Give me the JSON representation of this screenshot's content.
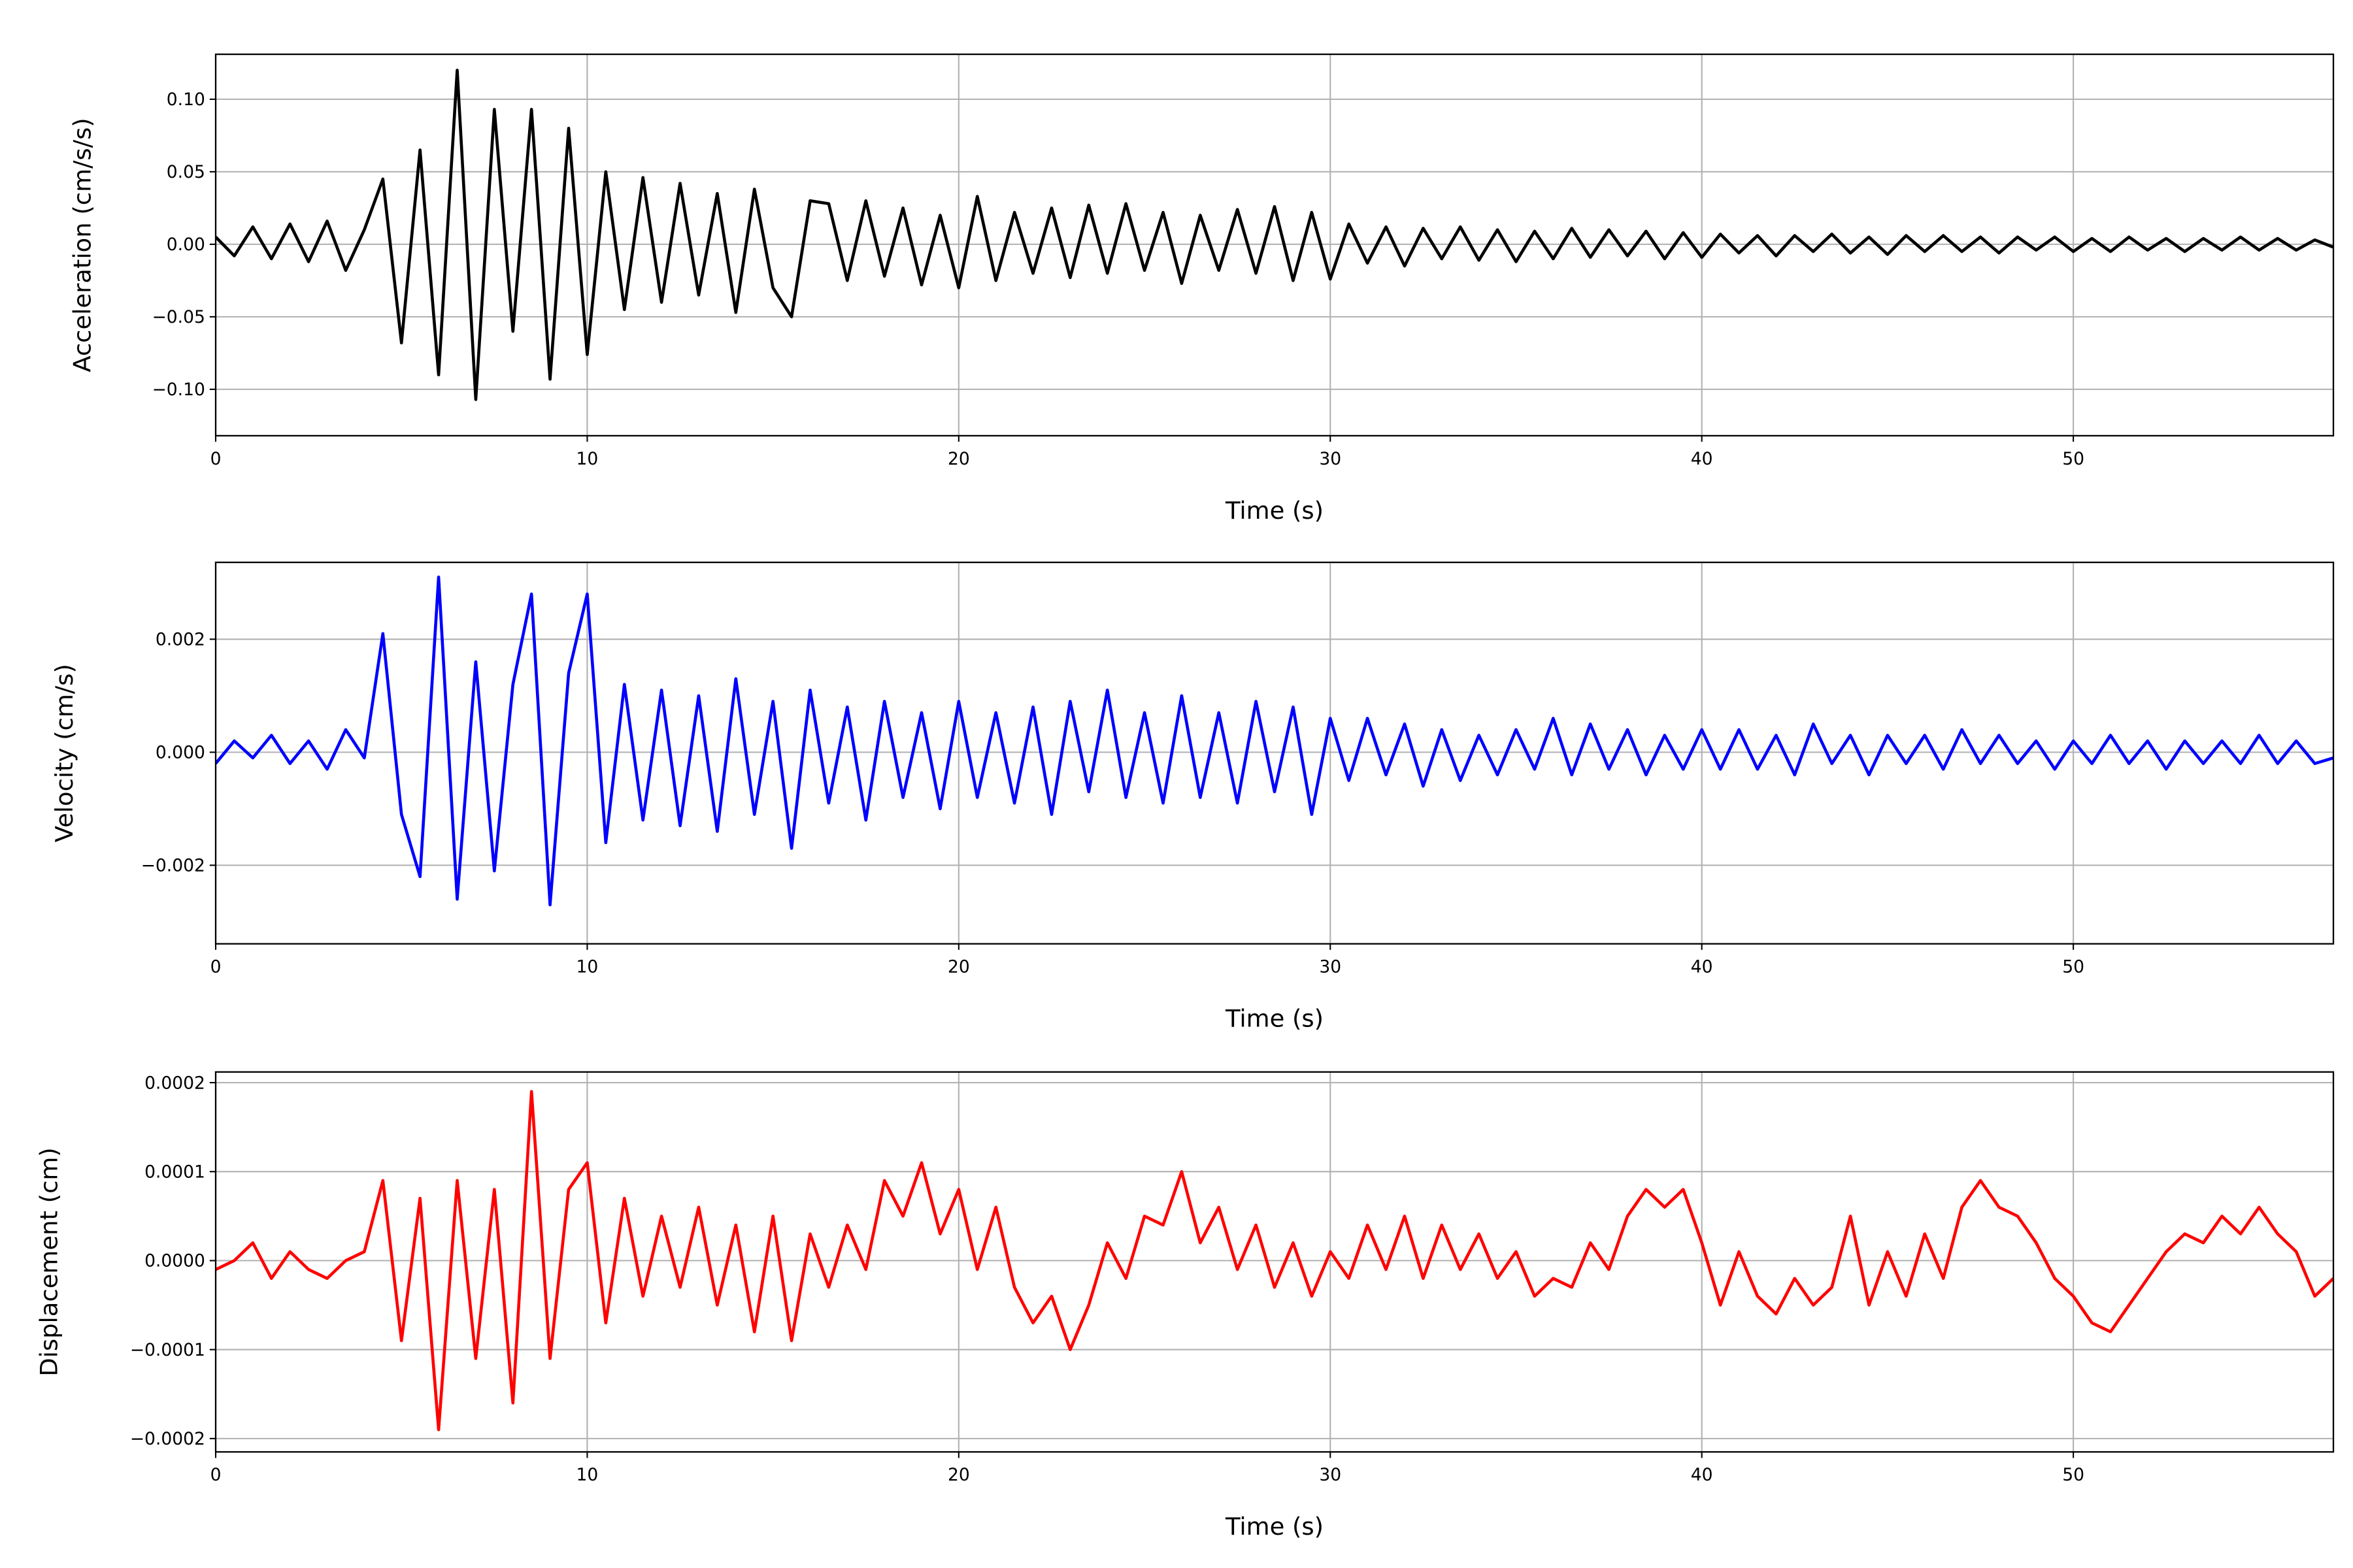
{
  "chart_data": [
    {
      "type": "line",
      "title": "",
      "xlabel": "Time (s)",
      "ylabel": "Acceleration (cm/s/s)",
      "xlim": [
        0,
        57
      ],
      "ylim": [
        -0.132,
        0.131
      ],
      "grid": true,
      "color": "#000000",
      "xticks": [
        0,
        10,
        20,
        30,
        40,
        50
      ],
      "xtick_labels": [
        "0",
        "10",
        "20",
        "30",
        "40",
        "50"
      ],
      "yticks": [
        0.1,
        0.05,
        0.0,
        -0.05,
        -0.1
      ],
      "ytick_labels": [
        "0.10",
        "0.05",
        "0.00",
        "−0.05",
        "−0.10"
      ],
      "x_start": 0,
      "x_step": 0.5,
      "values": [
        0.005,
        -0.008,
        0.012,
        -0.01,
        0.014,
        -0.012,
        0.016,
        -0.018,
        0.01,
        0.045,
        -0.068,
        0.065,
        -0.09,
        0.12,
        -0.107,
        0.093,
        -0.06,
        0.093,
        -0.093,
        0.08,
        -0.076,
        0.05,
        -0.045,
        0.046,
        -0.04,
        0.042,
        -0.035,
        0.035,
        -0.047,
        0.038,
        -0.03,
        -0.05,
        0.03,
        0.028,
        -0.025,
        0.03,
        -0.022,
        0.025,
        -0.028,
        0.02,
        -0.03,
        0.033,
        -0.025,
        0.022,
        -0.02,
        0.025,
        -0.023,
        0.027,
        -0.02,
        0.028,
        -0.018,
        0.022,
        -0.027,
        0.02,
        -0.018,
        0.024,
        -0.02,
        0.026,
        -0.025,
        0.022,
        -0.024,
        0.014,
        -0.013,
        0.012,
        -0.015,
        0.011,
        -0.01,
        0.012,
        -0.011,
        0.01,
        -0.012,
        0.009,
        -0.01,
        0.011,
        -0.009,
        0.01,
        -0.008,
        0.009,
        -0.01,
        0.008,
        -0.009,
        0.007,
        -0.006,
        0.006,
        -0.008,
        0.006,
        -0.005,
        0.007,
        -0.006,
        0.005,
        -0.007,
        0.006,
        -0.005,
        0.006,
        -0.005,
        0.005,
        -0.006,
        0.005,
        -0.004,
        0.005,
        -0.005,
        0.004,
        -0.005,
        0.005,
        -0.004,
        0.004,
        -0.005,
        0.004,
        -0.004,
        0.005,
        -0.004,
        0.004,
        -0.004,
        0.003,
        -0.002
      ]
    },
    {
      "type": "line",
      "title": "",
      "xlabel": "Time (s)",
      "ylabel": "Velocity (cm/s)",
      "xlim": [
        0,
        57
      ],
      "ylim": [
        -0.00339,
        0.00336
      ],
      "grid": true,
      "color": "#0000ff",
      "xticks": [
        0,
        10,
        20,
        30,
        40,
        50
      ],
      "xtick_labels": [
        "0",
        "10",
        "20",
        "30",
        "40",
        "50"
      ],
      "yticks": [
        0.002,
        0.0,
        -0.002
      ],
      "ytick_labels": [
        "0.002",
        "0.000",
        "−0.002"
      ],
      "x_start": 0,
      "x_step": 0.5,
      "values": [
        -0.0002,
        0.0002,
        -0.0001,
        0.0003,
        -0.0002,
        0.0002,
        -0.0003,
        0.0004,
        -0.0001,
        0.0021,
        -0.0011,
        -0.0022,
        0.0031,
        -0.0026,
        0.0016,
        -0.0021,
        0.0012,
        0.0028,
        -0.0027,
        0.0014,
        0.0028,
        -0.0016,
        0.0012,
        -0.0012,
        0.0011,
        -0.0013,
        0.001,
        -0.0014,
        0.0013,
        -0.0011,
        0.0009,
        -0.0017,
        0.0011,
        -0.0009,
        0.0008,
        -0.0012,
        0.0009,
        -0.0008,
        0.0007,
        -0.001,
        0.0009,
        -0.0008,
        0.0007,
        -0.0009,
        0.0008,
        -0.0011,
        0.0009,
        -0.0007,
        0.0011,
        -0.0008,
        0.0007,
        -0.0009,
        0.001,
        -0.0008,
        0.0007,
        -0.0009,
        0.0009,
        -0.0007,
        0.0008,
        -0.0011,
        0.0006,
        -0.0005,
        0.0006,
        -0.0004,
        0.0005,
        -0.0006,
        0.0004,
        -0.0005,
        0.0003,
        -0.0004,
        0.0004,
        -0.0003,
        0.0006,
        -0.0004,
        0.0005,
        -0.0003,
        0.0004,
        -0.0004,
        0.0003,
        -0.0003,
        0.0004,
        -0.0003,
        0.0004,
        -0.0003,
        0.0003,
        -0.0004,
        0.0005,
        -0.0002,
        0.0003,
        -0.0004,
        0.0003,
        -0.0002,
        0.0003,
        -0.0003,
        0.0004,
        -0.0002,
        0.0003,
        -0.0002,
        0.0002,
        -0.0003,
        0.0002,
        -0.0002,
        0.0003,
        -0.0002,
        0.0002,
        -0.0003,
        0.0002,
        -0.0002,
        0.0002,
        -0.0002,
        0.0003,
        -0.0002,
        0.0002,
        -0.0002,
        -0.0001
      ]
    },
    {
      "type": "line",
      "title": "",
      "xlabel": "Time (s)",
      "ylabel": "Displacement (cm)",
      "xlim": [
        0,
        57
      ],
      "ylim": [
        -0.000215,
        0.000212
      ],
      "grid": true,
      "color": "#ff0000",
      "xticks": [
        0,
        10,
        20,
        30,
        40,
        50
      ],
      "xtick_labels": [
        "0",
        "10",
        "20",
        "30",
        "40",
        "50"
      ],
      "yticks": [
        0.0002,
        0.0001,
        0.0,
        -0.0001,
        -0.0002
      ],
      "ytick_labels": [
        "0.0002",
        "0.0001",
        "0.0000",
        "−0.0001",
        "−0.0002"
      ],
      "x_start": 0,
      "x_step": 0.5,
      "values": [
        -1e-05,
        0,
        2e-05,
        -2e-05,
        1e-05,
        -1e-05,
        -2e-05,
        0,
        1e-05,
        9e-05,
        -9e-05,
        7e-05,
        -0.00019,
        9e-05,
        -0.00011,
        8e-05,
        -0.00016,
        0.00019,
        -0.00011,
        8e-05,
        0.00011,
        -7e-05,
        7e-05,
        -4e-05,
        5e-05,
        -3e-05,
        6e-05,
        -5e-05,
        4e-05,
        -8e-05,
        5e-05,
        -9e-05,
        3e-05,
        -3e-05,
        4e-05,
        -1e-05,
        9e-05,
        5e-05,
        0.00011,
        3e-05,
        8e-05,
        -1e-05,
        6e-05,
        -3e-05,
        -7e-05,
        -4e-05,
        -0.0001,
        -5e-05,
        2e-05,
        -2e-05,
        5e-05,
        4e-05,
        0.0001,
        2e-05,
        6e-05,
        -1e-05,
        4e-05,
        -3e-05,
        2e-05,
        -4e-05,
        1e-05,
        -2e-05,
        4e-05,
        -1e-05,
        5e-05,
        -2e-05,
        4e-05,
        -1e-05,
        3e-05,
        -2e-05,
        1e-05,
        -4e-05,
        -2e-05,
        -3e-05,
        2e-05,
        -1e-05,
        5e-05,
        8e-05,
        6e-05,
        8e-05,
        2e-05,
        -5e-05,
        1e-05,
        -4e-05,
        -6e-05,
        -2e-05,
        -5e-05,
        -3e-05,
        5e-05,
        -5e-05,
        1e-05,
        -4e-05,
        3e-05,
        -2e-05,
        6e-05,
        9e-05,
        6e-05,
        5e-05,
        2e-05,
        -2e-05,
        -4e-05,
        -7e-05,
        -8e-05,
        -5e-05,
        -2e-05,
        1e-05,
        3e-05,
        2e-05,
        5e-05,
        3e-05,
        6e-05,
        3e-05,
        1e-05,
        -4e-05,
        -2e-05
      ]
    }
  ]
}
